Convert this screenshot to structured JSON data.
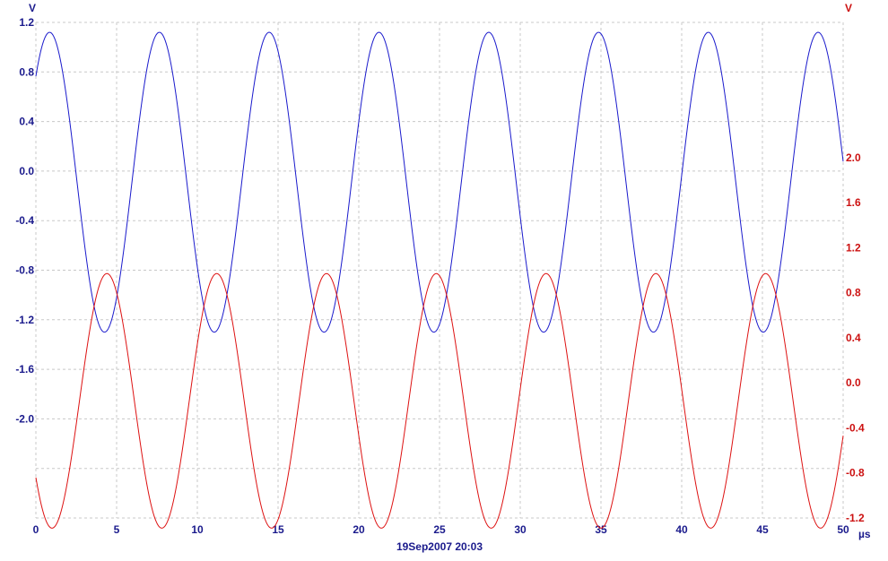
{
  "chart_data": {
    "type": "line",
    "x_unit": "µs",
    "xlim": [
      0,
      50
    ],
    "x_ticks": [
      0,
      5,
      10,
      15,
      20,
      25,
      30,
      35,
      40,
      45,
      50
    ],
    "y_left_unit": "V",
    "y_left_lim": [
      -2.8,
      1.2
    ],
    "y_left_ticks": [
      1.2,
      0.8,
      0.4,
      0.0,
      -0.4,
      -0.8,
      -1.2,
      -1.6,
      -2.0
    ],
    "y_right_unit": "V",
    "y_right_lim": [
      -1.2,
      3.2
    ],
    "y_right_ticks": [
      2.0,
      1.6,
      1.2,
      0.8,
      0.4,
      0.0,
      -0.4,
      -0.8,
      -1.2
    ],
    "grid": true,
    "timestamp": "19Sep2007  20:03",
    "series": [
      {
        "axis": "left",
        "color": "#1a1acc",
        "waveform": "sine",
        "offset": -0.09,
        "amplitude": 1.21,
        "period": 6.8,
        "phase_peak_x": 0.85,
        "x_range": [
          0,
          50
        ]
      },
      {
        "axis": "right",
        "color": "#dd1111",
        "waveform": "sine",
        "offset": -0.16,
        "amplitude": 1.13,
        "period": 6.8,
        "phase_peak_x": 4.4,
        "x_range": [
          0,
          50
        ]
      }
    ]
  }
}
